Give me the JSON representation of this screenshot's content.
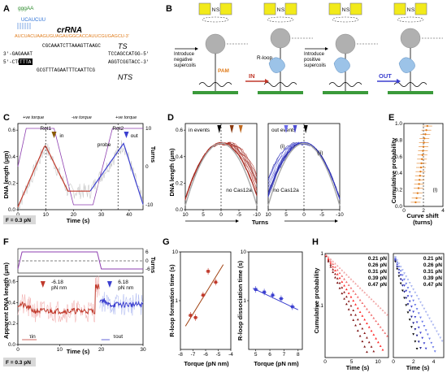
{
  "labels": {
    "A": "A",
    "B": "B",
    "C": "C",
    "D": "D",
    "E": "E",
    "F": "F",
    "G": "G",
    "H": "H"
  },
  "colors": {
    "in": "#c0392b",
    "out": "#3b3fcf",
    "turns": "#8e3fb0",
    "orange": "#e07b1a",
    "bead": "#b0b0b0",
    "magnet": "#f2ea1a",
    "cas": "#9cc3e8",
    "grey": "#a8a8a8",
    "dark_red": "#7a1010",
    "bright_red": "#ff2a2a",
    "pink": "#f1a7a7",
    "navy": "#1a1a8a",
    "light_blue": "#a9b5f0"
  },
  "panelA": {
    "crrna_label": "crRNA",
    "seq_top_prefix": "5'-",
    "seq_top_green": "gggAA",
    "seq_top_rest": "UAAUUUCUACUAAGUGUAGAUGGCACCAUUCGUGAGCU-3'",
    "seq_loop": "UCAUCUU",
    "seq_mid": "CGCAAATCTTAAAGTTAAGC",
    "seq_ts": "3'-GAGAAAT",
    "seq_ts_right": "TCCAGCCATGG-5'",
    "seq_nts": "5'-CTC",
    "seq_pam": "TTTA",
    "seq_nts_right": "AGGTCGGTACC-3'",
    "seq_bottom": "GCGTTTAGAATTTCAATTCG",
    "ts_label": "TS",
    "nts_label": "NTS"
  },
  "panelB": {
    "step1": "Introduce\nnegative\nsupercoils",
    "pam": "PAM",
    "rloop": "R-loop",
    "in": "IN",
    "step2": "Introduce\npositive\nsupercoils",
    "out": "OUT",
    "magnet_n": "N",
    "magnet_s": "S"
  },
  "panelC": {
    "ylabel": "DNA length (μm)",
    "xlabel": "Time (s)",
    "ylabel_right": "Turns",
    "yticks": [
      "0.0",
      "0.2",
      "0.4",
      "0.6"
    ],
    "yticks_right": [
      "10",
      "0",
      "-10"
    ],
    "xticks": [
      "0",
      "10",
      "20",
      "30",
      "40"
    ],
    "force_pos1": "+ve torque",
    "force_neg": "-ve torque",
    "force_pos2": "+ve torque",
    "rot1": "Rot1",
    "rot2": "Rot2",
    "in_label": "in",
    "out_label": "out",
    "probe": "probe",
    "force": "F = 0.3 pN"
  },
  "panelD": {
    "ylabel": "DNA length (μm)",
    "xlabel": "Turns",
    "yticks": [
      "0.0",
      "0.2",
      "0.4",
      "0.6"
    ],
    "xticks": [
      "10",
      "5",
      "0",
      "-5",
      "-10"
    ],
    "left_title": "in events",
    "right_title": "out events",
    "no_cas": "no Cas12a",
    "i_label": "(i)",
    "ii_label": "(ii)"
  },
  "panelE": {
    "ylabel": "Cumulative probability",
    "xlabel": "Curve shift\n(turns)",
    "yticks": [
      "0.0",
      "0.2",
      "0.4",
      "0.6",
      "0.8",
      "1.0"
    ],
    "xticks": [
      "0",
      "2",
      "4"
    ],
    "i_label": "(i)"
  },
  "panelF": {
    "ylabel": "Apparent DNA length (μm)",
    "xlabel": "Time (s)",
    "ylabel_right": "Turns",
    "yticks": [
      "0.0",
      "0.2",
      "0.4",
      "0.6"
    ],
    "xticks": [
      "0",
      "10",
      "20",
      "30"
    ],
    "turn_ticks": [
      "6",
      "0",
      "-6"
    ],
    "in_torque": "-6.18\npN nm",
    "out_torque": "6.18\npN nm",
    "tau_in": "τin",
    "tau_out": "τout",
    "force": "F = 0.3 pN"
  },
  "panelG": {
    "left_ylabel": "R-loop formation time (s)",
    "right_ylabel": "R-loop dissociation time (s)",
    "left_xlabel": "Torque (pN nm)",
    "right_xlabel": "Torque (pN nm)",
    "left_xticks": [
      "-8",
      "-7",
      "-6",
      "-5",
      "-4"
    ],
    "right_xticks": [
      "5",
      "6",
      "7",
      "8"
    ],
    "left_yticks": [
      "1",
      "10"
    ],
    "right_yticks": [
      "1",
      "10"
    ]
  },
  "panelH": {
    "ylabel": "Cumulative probability",
    "xlabel": "Time (s)",
    "left_xticks": [
      "0",
      "5",
      "10"
    ],
    "right_xticks": [
      "0",
      "2",
      "4"
    ],
    "yticks": [
      "1",
      "0.1"
    ],
    "legend_in": [
      "0.21 pN",
      "0.26 pN",
      "0.31 pN",
      "0.39 pN",
      "0.47 pN"
    ],
    "legend_out": [
      "0.21 pN",
      "0.26 pN",
      "0.31 pN",
      "0.39 pN",
      "0.47 pN"
    ]
  },
  "chart_data": [
    {
      "panel": "G-left",
      "type": "scatter",
      "x": [
        -7.2,
        -6.8,
        -6.2,
        -5.8,
        -5.2
      ],
      "y": [
        0.5,
        0.45,
        1.3,
        4.0,
        2.4
      ],
      "xlabel": "Torque (pN nm)",
      "ylabel": "R-loop formation time (s)",
      "xlim": [
        -8,
        -4
      ],
      "ylim": [
        0.1,
        10
      ],
      "yscale": "log"
    },
    {
      "panel": "G-right",
      "type": "scatter",
      "x": [
        5.0,
        5.6,
        6.2,
        6.8,
        7.6
      ],
      "y": [
        1.7,
        1.5,
        1.3,
        1.1,
        0.75
      ],
      "xlabel": "Torque (pN nm)",
      "ylabel": "R-loop dissociation time (s)",
      "xlim": [
        4.5,
        8.3
      ],
      "ylim": [
        0.1,
        10
      ],
      "yscale": "log"
    },
    {
      "panel": "E",
      "type": "scatter",
      "x": [
        1.2,
        1.3,
        1.4,
        1.5,
        1.55,
        1.6,
        1.65,
        1.7,
        1.75,
        1.8,
        1.85,
        1.9,
        1.95,
        2.0,
        2.05,
        2.1,
        2.2,
        2.3,
        2.4
      ],
      "y": [
        0.05,
        0.1,
        0.16,
        0.22,
        0.27,
        0.32,
        0.37,
        0.42,
        0.47,
        0.52,
        0.57,
        0.62,
        0.67,
        0.72,
        0.77,
        0.82,
        0.87,
        0.92,
        0.97
      ],
      "xlabel": "Curve shift (turns)",
      "ylabel": "Cumulative probability",
      "xlim": [
        0,
        4
      ],
      "ylim": [
        0,
        1
      ]
    }
  ]
}
